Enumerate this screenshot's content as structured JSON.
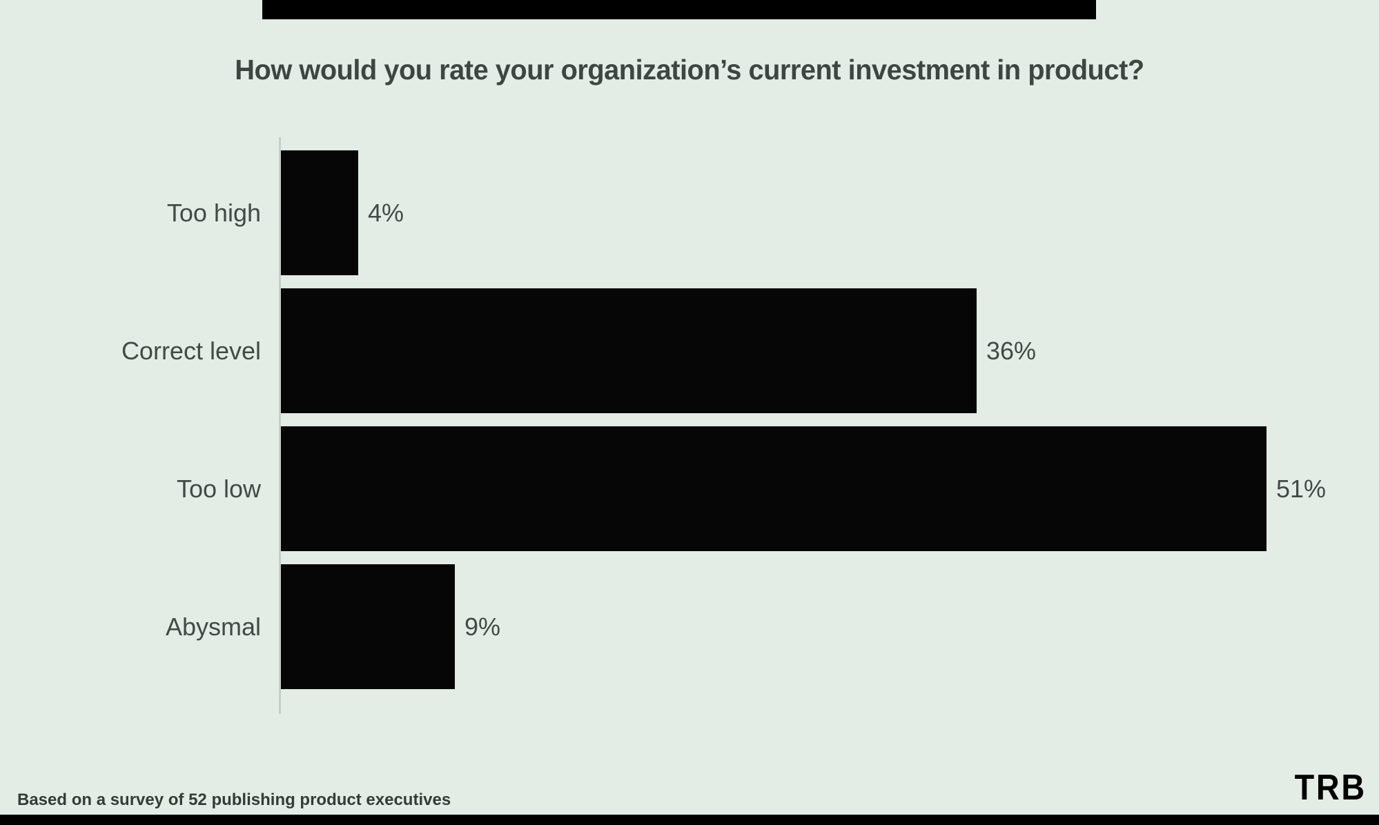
{
  "title": "How would you rate your organization’s current investment in product?",
  "chart_data": {
    "type": "bar",
    "orientation": "horizontal",
    "title": "How would you rate your organization’s current investment in product?",
    "categories": [
      "Too high",
      "Correct level",
      "Too low",
      "Abysmal"
    ],
    "values": [
      4,
      36,
      51,
      9
    ],
    "value_labels": [
      "4%",
      "36%",
      "51%",
      "9%"
    ],
    "unit": "percent",
    "xlabel": "",
    "ylabel": "",
    "xlim": [
      0,
      55
    ],
    "grid": false,
    "legend": false,
    "bar_color": "#050605",
    "background_color": "#e3ece5",
    "label_color": "#424a46",
    "axis_line_color": "#c6cec8"
  },
  "footer": {
    "note": "Based on a survey of 52 publishing product executives",
    "logo": "TRB"
  }
}
